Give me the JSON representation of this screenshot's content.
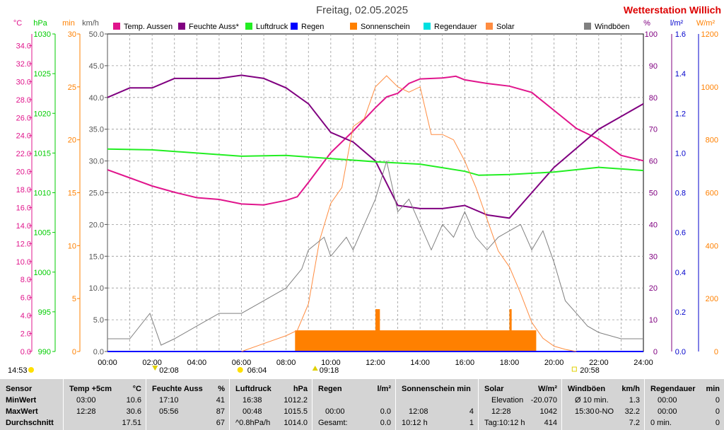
{
  "header": {
    "title": "Freitag, 02.05.2025",
    "station": "Wetterstation Willich"
  },
  "legend": [
    {
      "label": "Temp. Aussen",
      "color": "#e0158c"
    },
    {
      "label": "Feuchte Auss*",
      "color": "#800080"
    },
    {
      "label": "Luftdruck",
      "color": "#22ee22"
    },
    {
      "label": "Regen",
      "color": "#0000ff"
    },
    {
      "label": "Sonnenschein",
      "color": "#ff8000"
    },
    {
      "label": "Regendauer",
      "color": "#00e0e0"
    },
    {
      "label": "Solar",
      "color": "#ff8c40"
    },
    {
      "label": "Windböen",
      "color": "#808080"
    }
  ],
  "axes": {
    "left": [
      {
        "unit": "°C",
        "color": "#e0158c",
        "ticks": [
          "0.0",
          "2.0",
          "4.0",
          "6.0",
          "8.0",
          "10.0",
          "12.0",
          "14.0",
          "16.0",
          "18.0",
          "20.0",
          "22.0",
          "24.0",
          "26.0",
          "28.0",
          "30.0",
          "32.0",
          "34.0"
        ]
      },
      {
        "unit": "hPa",
        "color": "#00cc00",
        "ticks": [
          "990",
          "995",
          "1000",
          "1005",
          "1010",
          "1015",
          "1020",
          "1025",
          "1030"
        ]
      },
      {
        "unit": "min",
        "color": "#ff8000",
        "ticks": [
          "0",
          "5",
          "10",
          "15",
          "20",
          "25",
          "30"
        ]
      },
      {
        "unit": "km/h",
        "color": "#555555",
        "ticks": [
          "0.0",
          "5.0",
          "10.0",
          "15.0",
          "20.0",
          "25.0",
          "30.0",
          "35.0",
          "40.0",
          "45.0",
          "50.0"
        ]
      }
    ],
    "right": [
      {
        "unit": "%",
        "color": "#800080",
        "ticks": [
          "0",
          "10",
          "20",
          "30",
          "40",
          "50",
          "60",
          "70",
          "80",
          "90",
          "100"
        ]
      },
      {
        "unit": "l/m²",
        "color": "#0000cc",
        "ticks": [
          "0.0",
          "0.2",
          "0.4",
          "0.6",
          "0.8",
          "1.0",
          "1.2",
          "1.4",
          "1.6"
        ]
      },
      {
        "unit": "W/m²",
        "color": "#ff8000",
        "ticks": [
          "0",
          "200",
          "400",
          "600",
          "800",
          "1000",
          "1200"
        ]
      }
    ],
    "x_ticks": [
      "00:00",
      "02:00",
      "04:00",
      "06:00",
      "08:00",
      "10:00",
      "12:00",
      "14:00",
      "16:00",
      "18:00",
      "20:00",
      "22:00",
      "24:00"
    ]
  },
  "markers": [
    {
      "label": "14:53",
      "shape": "sun",
      "hour": -1.6
    },
    {
      "label": "02:08",
      "shape": "down",
      "hour": 2.13
    },
    {
      "label": "06:04",
      "shape": "sun",
      "hour": 6.07
    },
    {
      "label": "09:18",
      "shape": "up",
      "hour": 9.3
    },
    {
      "label": "20:58",
      "shape": "sq",
      "hour": 20.97
    }
  ],
  "chart_data": {
    "type": "line",
    "x_range": [
      0,
      24
    ],
    "series": [
      {
        "name": "Temp. Aussen",
        "unit": "°C",
        "scale": [
          0,
          35.3
        ],
        "color": "#e0158c",
        "points": [
          [
            0,
            20.2
          ],
          [
            1,
            19.3
          ],
          [
            2,
            18.4
          ],
          [
            3,
            17.7
          ],
          [
            4,
            17.1
          ],
          [
            5,
            16.9
          ],
          [
            6,
            16.4
          ],
          [
            7,
            16.3
          ],
          [
            8,
            16.8
          ],
          [
            8.5,
            17.2
          ],
          [
            9,
            18.8
          ],
          [
            10,
            22.1
          ],
          [
            11,
            24.5
          ],
          [
            12,
            27.1
          ],
          [
            12.5,
            28.3
          ],
          [
            13,
            28.7
          ],
          [
            13.5,
            29.8
          ],
          [
            14,
            30.3
          ],
          [
            15,
            30.4
          ],
          [
            15.6,
            30.6
          ],
          [
            16,
            30.2
          ],
          [
            17,
            29.8
          ],
          [
            18,
            29.5
          ],
          [
            19,
            28.8
          ],
          [
            20,
            26.8
          ],
          [
            21,
            24.8
          ],
          [
            22,
            23.6
          ],
          [
            23,
            21.8
          ],
          [
            24,
            21.2
          ]
        ]
      },
      {
        "name": "Feuchte Auss*",
        "unit": "%",
        "scale": [
          0,
          100
        ],
        "color": "#800080",
        "points": [
          [
            0,
            80
          ],
          [
            1,
            83
          ],
          [
            2,
            83
          ],
          [
            3,
            86
          ],
          [
            4,
            86
          ],
          [
            5,
            86
          ],
          [
            6,
            87
          ],
          [
            7,
            86
          ],
          [
            8,
            83
          ],
          [
            9,
            78
          ],
          [
            10,
            69
          ],
          [
            11,
            66
          ],
          [
            12,
            60
          ],
          [
            13,
            46
          ],
          [
            14,
            45
          ],
          [
            15,
            45
          ],
          [
            16,
            46
          ],
          [
            17,
            43
          ],
          [
            18,
            42
          ],
          [
            19,
            50
          ],
          [
            20,
            58
          ],
          [
            21,
            64
          ],
          [
            22,
            70
          ],
          [
            23,
            74
          ],
          [
            24,
            78
          ]
        ]
      },
      {
        "name": "Luftdruck",
        "unit": "hPa",
        "scale": [
          990,
          1030
        ],
        "color": "#22ee22",
        "points": [
          [
            0,
            1015.5
          ],
          [
            2,
            1015.4
          ],
          [
            4,
            1015.0
          ],
          [
            6,
            1014.6
          ],
          [
            8,
            1014.7
          ],
          [
            10,
            1014.3
          ],
          [
            12,
            1013.9
          ],
          [
            14,
            1013.6
          ],
          [
            16,
            1012.7
          ],
          [
            16.63,
            1012.2
          ],
          [
            18,
            1012.3
          ],
          [
            20,
            1012.6
          ],
          [
            22,
            1013.2
          ],
          [
            24,
            1012.8
          ]
        ]
      },
      {
        "name": "Regen",
        "unit": "l/m²",
        "scale": [
          0,
          1.6
        ],
        "color": "#0000ff",
        "points": [
          [
            0,
            0
          ],
          [
            24,
            0
          ]
        ]
      },
      {
        "name": "Solar",
        "unit": "W/m²",
        "scale": [
          0,
          1200
        ],
        "color": "#ff8c40",
        "points": [
          [
            6,
            0
          ],
          [
            7,
            30
          ],
          [
            8,
            60
          ],
          [
            8.5,
            80
          ],
          [
            9,
            180
          ],
          [
            9.5,
            420
          ],
          [
            10,
            560
          ],
          [
            10.5,
            620
          ],
          [
            11,
            850
          ],
          [
            11.5,
            880
          ],
          [
            12,
            1000
          ],
          [
            12.5,
            1042
          ],
          [
            13,
            1000
          ],
          [
            13.5,
            980
          ],
          [
            14,
            1000
          ],
          [
            14.5,
            820
          ],
          [
            15,
            820
          ],
          [
            15.5,
            800
          ],
          [
            16,
            720
          ],
          [
            16.5,
            620
          ],
          [
            17,
            500
          ],
          [
            17.5,
            380
          ],
          [
            18,
            320
          ],
          [
            18.5,
            220
          ],
          [
            19,
            110
          ],
          [
            19.5,
            50
          ],
          [
            20,
            20
          ],
          [
            20.5,
            8
          ],
          [
            21,
            0
          ]
        ]
      },
      {
        "name": "Windböen",
        "unit": "km/h",
        "scale": [
          0,
          50
        ],
        "color": "#808080",
        "points": [
          [
            0,
            2
          ],
          [
            1,
            2
          ],
          [
            1.9,
            6
          ],
          [
            2.4,
            1
          ],
          [
            3,
            2
          ],
          [
            4,
            4
          ],
          [
            5,
            6
          ],
          [
            6,
            6
          ],
          [
            7,
            8
          ],
          [
            8,
            10
          ],
          [
            8.7,
            13
          ],
          [
            9,
            16
          ],
          [
            9.7,
            18
          ],
          [
            10,
            15
          ],
          [
            10.7,
            18
          ],
          [
            11,
            16
          ],
          [
            11.5,
            20
          ],
          [
            12,
            24
          ],
          [
            12.5,
            30
          ],
          [
            13,
            22
          ],
          [
            13.5,
            24
          ],
          [
            14,
            20
          ],
          [
            14.5,
            16
          ],
          [
            15,
            20
          ],
          [
            15.5,
            18
          ],
          [
            16,
            22
          ],
          [
            16.5,
            18
          ],
          [
            17,
            16
          ],
          [
            17.5,
            18
          ],
          [
            18,
            19
          ],
          [
            18.5,
            20
          ],
          [
            19,
            16
          ],
          [
            19.5,
            19
          ],
          [
            20,
            14
          ],
          [
            20.5,
            8
          ],
          [
            21,
            6
          ],
          [
            21.5,
            4
          ],
          [
            22,
            3
          ],
          [
            23,
            2
          ],
          [
            24,
            2
          ]
        ]
      }
    ],
    "bars": [
      {
        "name": "Sonnenschein",
        "unit": "min",
        "scale": [
          0,
          30
        ],
        "color": "#ff8000",
        "segments": [
          [
            8.4,
            19.2,
            2
          ],
          [
            12.0,
            12.2,
            4
          ],
          [
            18.0,
            18.1,
            4
          ]
        ]
      }
    ]
  },
  "stats": {
    "sensor": {
      "header": "Sensor",
      "rows": [
        "MinWert",
        "MaxWert",
        "Durchschnitt"
      ]
    },
    "temp": {
      "header": "Temp +5cm",
      "unit": "°C",
      "min_t": "03:00",
      "min_v": "10.6",
      "max_t": "12:28",
      "max_v": "30.6",
      "avg_v": "17.51"
    },
    "feuchte": {
      "header": "Feuchte Auss",
      "unit": "%",
      "min_t": "17:10",
      "min_v": "41",
      "max_t": "05:56",
      "max_v": "87",
      "avg_v": "67"
    },
    "luftdruck": {
      "header": "Luftdruck",
      "unit": "hPa",
      "min_t": "16:38",
      "min_v": "1012.2",
      "max_t": "00:48",
      "max_v": "1015.5",
      "avg_t": "^0.8hPa/h",
      "avg_v": "1014.0"
    },
    "regen": {
      "header": "Regen",
      "unit": "l/m²",
      "max_t": "00:00",
      "max_v": "0.0",
      "avg_t": "Gesamt:",
      "avg_v": "0.0"
    },
    "sonne": {
      "header": "Sonnenschein min",
      "max_t": "12:08",
      "max_v": "4",
      "avg_t": "10:12 h",
      "avg_v": "1"
    },
    "solar": {
      "header": "Solar",
      "unit": "W/m²",
      "min_t": "Elevation",
      "min_v": "-20.070",
      "max_t": "12:28",
      "max_v": "1042",
      "avg_t": "Tag:10:12 h",
      "avg_v": "414"
    },
    "wind": {
      "header": "Windböen",
      "unit": "km/h",
      "min_t": "Ø 10 min.",
      "min_v": "1.3",
      "max_t": "15:30",
      "max_m": "0-NO",
      "max_v": "32.2",
      "avg_v": "7.2"
    },
    "regendauer": {
      "header": "Regendauer",
      "unit": "min",
      "min_t": "00:00",
      "min_v": "0",
      "max_t": "00:00",
      "max_v": "0",
      "avg_t": "0 min.",
      "avg_v": "0"
    }
  }
}
